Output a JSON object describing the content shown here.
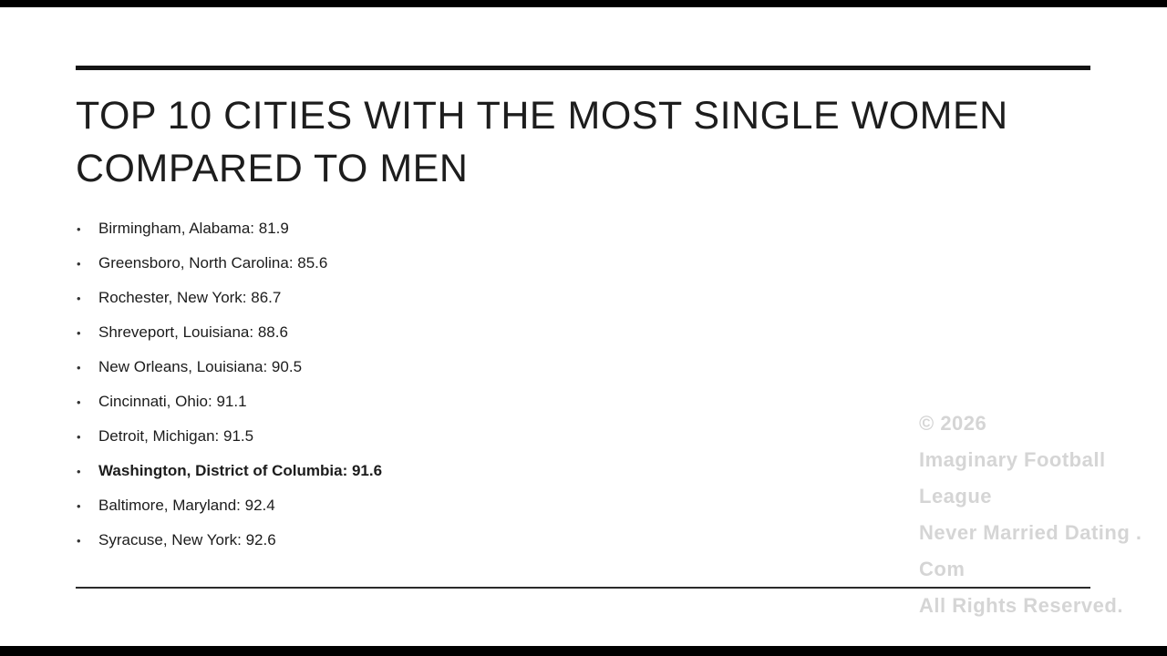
{
  "slide": {
    "title_line1": "TOP 10 CITIES WITH THE MOST SINGLE WOMEN",
    "title_line2": "COMPARED TO MEN",
    "bullet": "•",
    "items": [
      {
        "label": "Birmingham, Alabama: 81.9",
        "bold": false
      },
      {
        "label": "Greensboro, North Carolina: 85.6",
        "bold": false
      },
      {
        "label": "Rochester, New York: 86.7",
        "bold": false
      },
      {
        "label": "Shreveport, Louisiana: 88.6",
        "bold": false
      },
      {
        "label": "New Orleans, Louisiana: 90.5",
        "bold": false
      },
      {
        "label": "Cincinnati, Ohio: 91.1",
        "bold": false
      },
      {
        "label": "Detroit, Michigan: 91.5",
        "bold": false
      },
      {
        "label": "Washington, District of Columbia: 91.6",
        "bold": true
      },
      {
        "label": "Baltimore, Maryland: 92.4",
        "bold": false
      },
      {
        "label": "Syracuse, New York: 92.6",
        "bold": false
      }
    ]
  },
  "watermark": {
    "lines": [
      "© 2026",
      "Imaginary Football League",
      "Never Married Dating . Com",
      "All Rights Reserved."
    ]
  },
  "colors": {
    "background": "#ffffff",
    "letterbox": "#000000",
    "text": "#1c1c1c",
    "rule": "#141414",
    "watermark": "#cbcbcb"
  }
}
